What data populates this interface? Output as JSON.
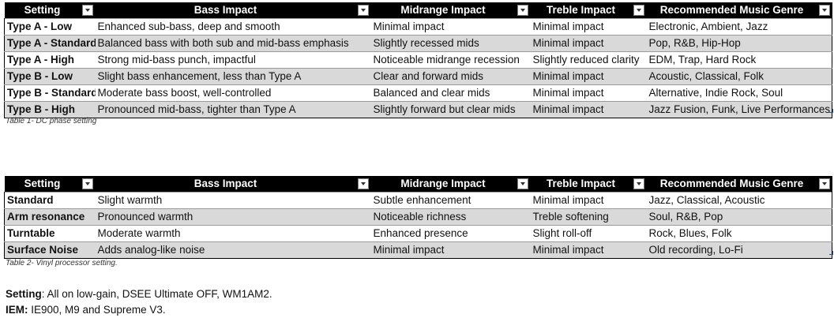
{
  "table1": {
    "headers": [
      "Setting",
      "Bass Impact",
      "Midrange Impact",
      "Treble Impact",
      "Recommended Music Genre"
    ],
    "rows": [
      [
        "Type A - Low",
        "Enhanced sub-bass, deep and smooth",
        "Minimal impact",
        "Minimal impact",
        "Electronic, Ambient, Jazz"
      ],
      [
        "Type A - Standard",
        "Balanced bass with both sub and mid-bass emphasis",
        "Slightly recessed mids",
        "Minimal impact",
        "Pop, R&B, Hip-Hop"
      ],
      [
        "Type A - High",
        "Strong mid-bass punch, impactful",
        "Noticeable midrange recession",
        "Slightly reduced clarity",
        "EDM, Trap, Hard Rock"
      ],
      [
        "Type B - Low",
        "Slight bass enhancement, less than Type A",
        "Clear and forward mids",
        "Minimal impact",
        "Acoustic, Classical, Folk"
      ],
      [
        "Type B - Standard",
        "Moderate bass boost, well-controlled",
        "Balanced and clear mids",
        "Minimal impact",
        "Alternative, Indie Rock, Soul"
      ],
      [
        "Type B - High",
        "Pronounced mid-bass, tighter than Type A",
        "Slightly forward but clear mids",
        "Minimal impact",
        "Jazz Fusion, Funk, Live Performances"
      ]
    ],
    "caption": "Table 1- DC phase setting"
  },
  "table2": {
    "headers": [
      "Setting",
      "Bass Impact",
      "Midrange Impact",
      "Treble Impact",
      "Recommended Music Genre"
    ],
    "rows": [
      [
        "Standard",
        "Slight warmth",
        "Subtle enhancement",
        "Minimal impact",
        "Jazz, Classical, Acoustic"
      ],
      [
        "Arm resonance",
        "Pronounced warmth",
        "Noticeable richness",
        "Treble softening",
        "Soul, R&B, Pop"
      ],
      [
        "Turntable",
        "Moderate warmth",
        "Enhanced presence",
        "Slight roll-off",
        "Rock, Blues, Folk"
      ],
      [
        "Surface Noise",
        "Adds analog-like noise",
        "Minimal impact",
        "Minimal impact",
        "Old recording, Lo-Fi"
      ]
    ],
    "caption": "Table 2- Vinyl processor setting."
  },
  "notes": {
    "setting_label": "Setting",
    "setting_text": ": All on low-gain, DSEE Ultimate OFF, WM1AM2.",
    "iem_label": "IEM:",
    "iem_text": " IE900, M9 and Supreme V3."
  },
  "colors": {
    "header_bg": "#000000",
    "header_text": "#ffffff",
    "alt_row": "#d9d9d9"
  }
}
